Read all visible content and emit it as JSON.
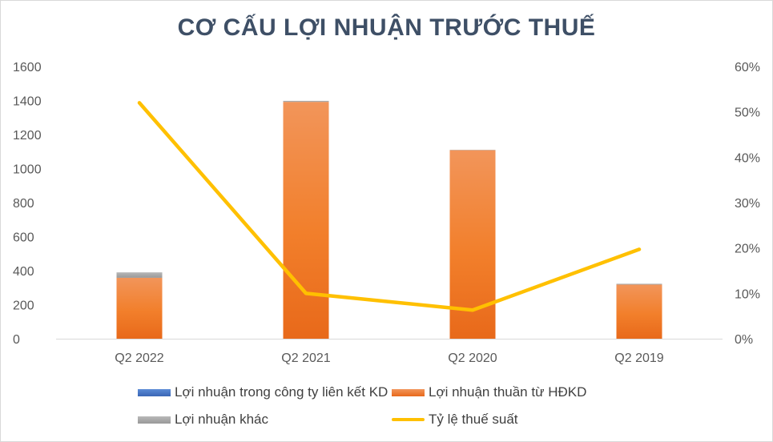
{
  "chart_data": {
    "type": "bar",
    "title": "CƠ CẤU LỢI NHUẬN TRƯỚC THUẾ",
    "categories": [
      "Q2 2022",
      "Q2 2021",
      "Q2 2020",
      "Q2 2019"
    ],
    "stacked": true,
    "series": [
      {
        "name": "Lợi nhuận trong công ty liên kết KD",
        "type": "bar",
        "axis": "left",
        "color": "#4472c4",
        "values": [
          0,
          0,
          0,
          0
        ]
      },
      {
        "name": "Lợi nhuận thuần từ HĐKD",
        "type": "bar",
        "axis": "left",
        "color": "#ed7d31",
        "values": [
          358,
          1392,
          1108,
          318
        ]
      },
      {
        "name": "Lợi nhuận khác",
        "type": "bar",
        "axis": "left",
        "color": "#a5a5a5",
        "values": [
          32,
          6,
          2,
          5
        ]
      },
      {
        "name": "Tỷ lệ thuế suất",
        "type": "line",
        "axis": "right",
        "color": "#ffc000",
        "values": [
          0.52,
          0.1,
          0.063,
          0.197
        ]
      }
    ],
    "y_left": {
      "min": 0,
      "max": 1600,
      "ticks": [
        "0",
        "200",
        "400",
        "600",
        "800",
        "1000",
        "1200",
        "1400",
        "1600"
      ]
    },
    "y_right": {
      "min": 0,
      "max": 0.6,
      "ticks": [
        "0%",
        "10%",
        "20%",
        "30%",
        "40%",
        "50%",
        "60%"
      ]
    },
    "grid": false,
    "legend_position": "bottom"
  }
}
